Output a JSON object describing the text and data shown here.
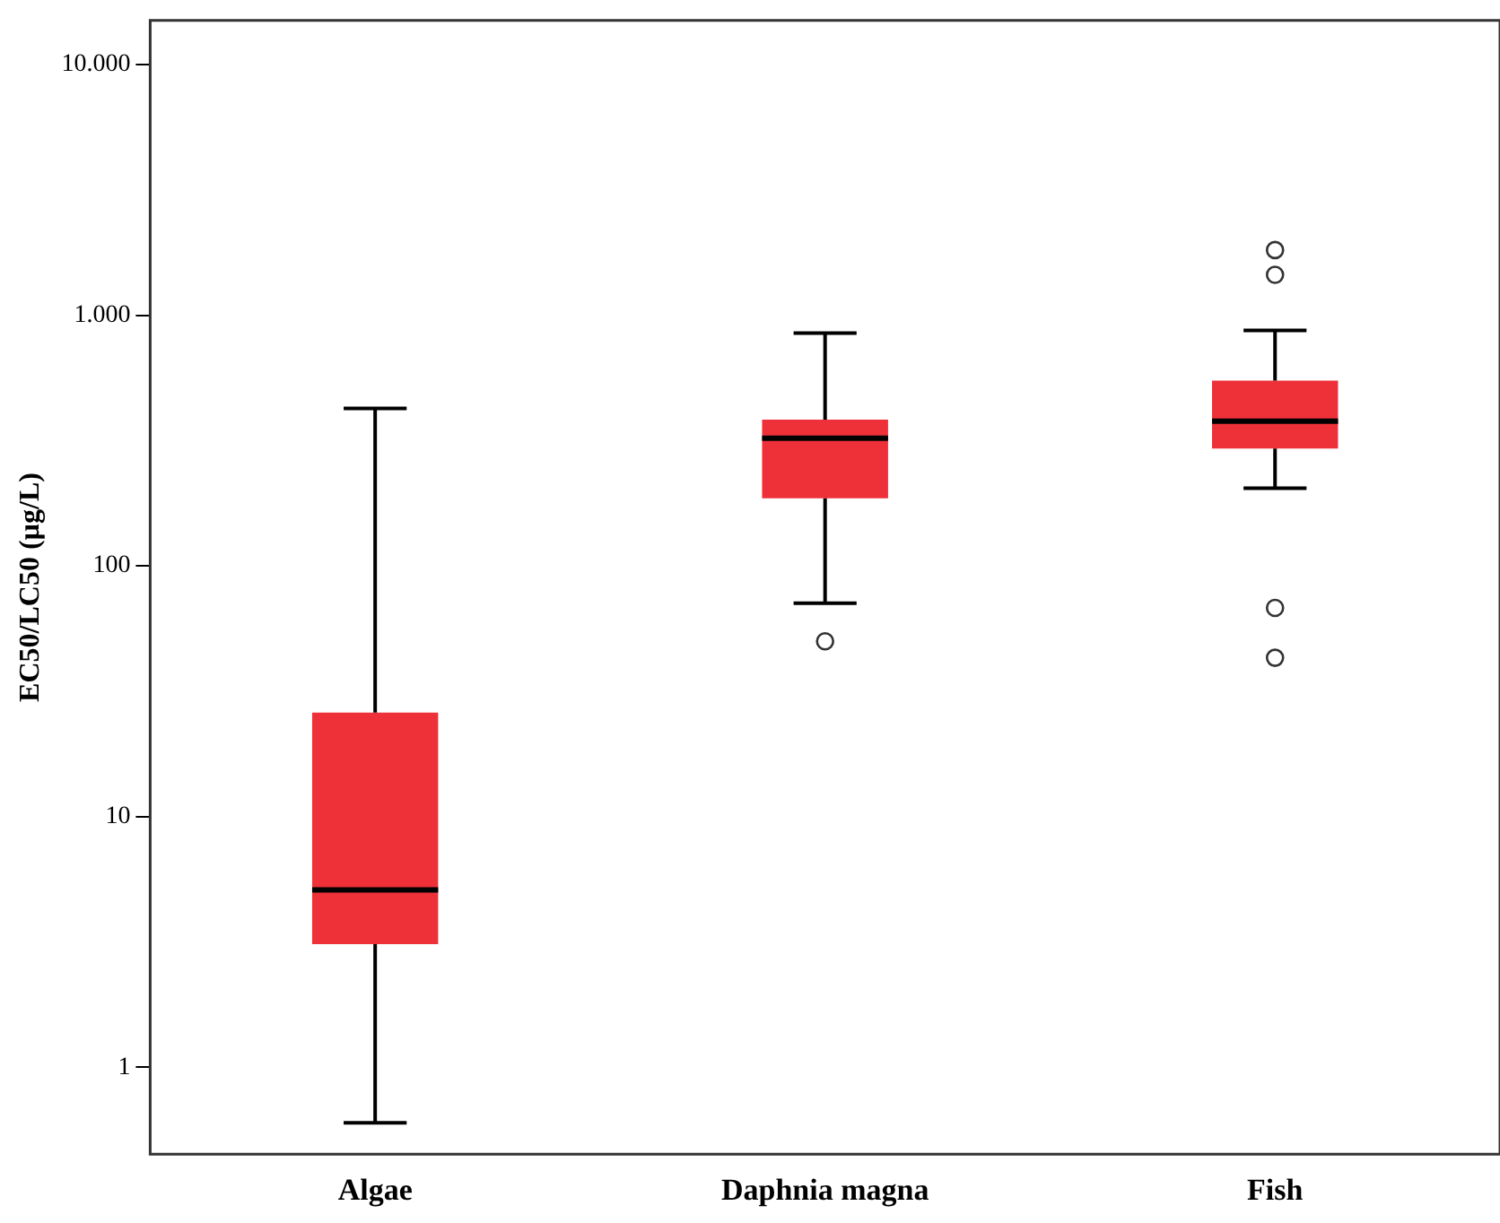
{
  "chart_data": {
    "type": "box",
    "ylabel": "EC50/LC50 (µg/L)",
    "categories": [
      "Algae",
      "Daphnia magna",
      "Fish"
    ],
    "color": "#ee3039",
    "boxes": [
      {
        "low": 0.6,
        "q1": 3.1,
        "median": 5.1,
        "q3": 26,
        "high": 425
      },
      {
        "low": 71,
        "q1": 186,
        "median": 323,
        "q3": 383,
        "high": 849,
        "outliers": [
          50
        ]
      },
      {
        "low": 204,
        "q1": 294,
        "median": 378,
        "q3": 548,
        "high": 870,
        "outliers": [
          1820,
          1450,
          68,
          43
        ]
      }
    ],
    "log": true,
    "ylim": [
      0.45,
      15000
    ],
    "yticks": [
      {
        "value": 1,
        "label": "1"
      },
      {
        "value": 10,
        "label": "10"
      },
      {
        "value": 100,
        "label": "100"
      },
      {
        "value": 1000,
        "label": "1.000"
      },
      {
        "value": 10000,
        "label": "10.000"
      }
    ],
    "grid": false,
    "legend": false
  }
}
